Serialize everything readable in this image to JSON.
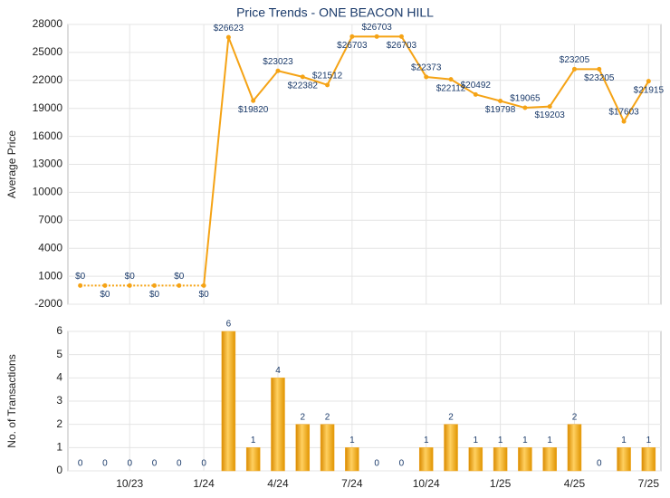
{
  "chart_data": [
    {
      "type": "line",
      "title": "Price Trends - ONE BEACON HILL",
      "ylabel": "Average Price",
      "color": "#f5a315",
      "values": [
        0,
        0,
        0,
        0,
        0,
        0,
        26623,
        19820,
        23023,
        22382,
        21512,
        26703,
        26703,
        26703,
        22373,
        22112,
        20492,
        19798,
        19065,
        19203,
        23205,
        23205,
        17603,
        21915
      ],
      "value_labels": [
        "$0",
        "$0",
        "$0",
        "$0",
        "$0",
        "$0",
        "$26623",
        "$19820",
        "$23023",
        "$22382",
        "$21512",
        "$26703",
        "$26703",
        "$26703",
        "$22373",
        "$22112",
        "$20492",
        "$19798",
        "$19065",
        "$19203",
        "$23205",
        "$23205",
        "$17603",
        "$21915"
      ],
      "ylim": [
        -2000,
        28000
      ],
      "yticks": [
        -2000,
        1000,
        4000,
        7000,
        10000,
        13000,
        16000,
        19000,
        22000,
        25000,
        28000
      ],
      "grid": true
    },
    {
      "type": "bar",
      "ylabel": "No. of Transactions",
      "color": "#f0a824",
      "categories": [
        null,
        null,
        "10/23",
        null,
        null,
        "1/24",
        null,
        null,
        "4/24",
        null,
        null,
        "7/24",
        null,
        null,
        "10/24",
        null,
        null,
        "1/25",
        null,
        null,
        "4/25",
        null,
        null,
        "7/25"
      ],
      "values": [
        0,
        0,
        0,
        0,
        0,
        0,
        6,
        1,
        4,
        2,
        2,
        1,
        0,
        0,
        1,
        2,
        1,
        1,
        1,
        1,
        2,
        0,
        1,
        1
      ],
      "ylim": [
        0,
        6
      ],
      "yticks": [
        0,
        1,
        2,
        3,
        4,
        5,
        6
      ],
      "grid": true
    }
  ]
}
